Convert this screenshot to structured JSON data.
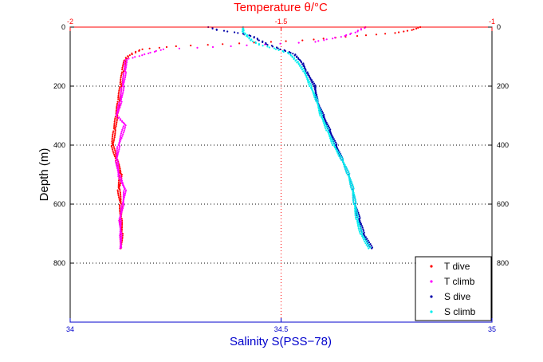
{
  "chart_data": {
    "type": "scatter",
    "top_axis": {
      "label": "Temperature θ/°C",
      "range": [
        -2,
        -1
      ],
      "ticks": [
        "-2",
        "-1.5",
        "-1"
      ],
      "tick_values": [
        -2,
        -1.5,
        -1
      ],
      "color": "#ff0000"
    },
    "bottom_axis": {
      "label": "Salinity S(PSS−78)",
      "range": [
        34,
        35
      ],
      "ticks": [
        "34",
        "34.5",
        "35"
      ],
      "tick_values": [
        34,
        34.5,
        35
      ],
      "color": "#0000cc"
    },
    "y_axis": {
      "label": "Depth (m)",
      "range": [
        0,
        1000
      ],
      "reversed": true,
      "ticks": [
        "0",
        "200",
        "400",
        "600",
        "800"
      ],
      "tick_values": [
        0,
        200,
        400,
        600,
        800
      ]
    },
    "grid": "dotted",
    "legend_position": "bottom-right",
    "series": [
      {
        "name": "T dive",
        "axis": "top",
        "color": "#ff0000",
        "points": [
          [
            -1.17,
            0
          ],
          [
            -1.19,
            10
          ],
          [
            -1.23,
            20
          ],
          [
            -1.32,
            30
          ],
          [
            -1.45,
            45
          ],
          [
            -1.6,
            55
          ],
          [
            -1.75,
            65
          ],
          [
            -1.83,
            75
          ],
          [
            -1.86,
            95
          ],
          [
            -1.87,
            110
          ],
          [
            -1.875,
            150
          ],
          [
            -1.88,
            200
          ],
          [
            -1.885,
            250
          ],
          [
            -1.89,
            300
          ],
          [
            -1.895,
            350
          ],
          [
            -1.9,
            400
          ],
          [
            -1.89,
            450
          ],
          [
            -1.88,
            500
          ],
          [
            -1.885,
            550
          ],
          [
            -1.88,
            600
          ],
          [
            -1.88,
            650
          ],
          [
            -1.878,
            700
          ],
          [
            -1.88,
            750
          ]
        ]
      },
      {
        "name": "T climb",
        "axis": "top",
        "color": "#ff00ff",
        "points": [
          [
            -1.88,
            750
          ],
          [
            -1.88,
            700
          ],
          [
            -1.882,
            650
          ],
          [
            -1.875,
            600
          ],
          [
            -1.87,
            550
          ],
          [
            -1.885,
            500
          ],
          [
            -1.89,
            450
          ],
          [
            -1.885,
            400
          ],
          [
            -1.87,
            330
          ],
          [
            -1.89,
            300
          ],
          [
            -1.88,
            250
          ],
          [
            -1.875,
            200
          ],
          [
            -1.87,
            150
          ],
          [
            -1.868,
            110
          ],
          [
            -1.83,
            95
          ],
          [
            -1.78,
            75
          ],
          [
            -1.62,
            65
          ],
          [
            -1.42,
            50
          ],
          [
            -1.35,
            30
          ],
          [
            -1.32,
            15
          ],
          [
            -1.3,
            0
          ]
        ]
      },
      {
        "name": "S dive",
        "axis": "bottom",
        "color": "#0000aa",
        "points": [
          [
            34.33,
            0
          ],
          [
            34.35,
            10
          ],
          [
            34.4,
            20
          ],
          [
            34.43,
            30
          ],
          [
            34.45,
            45
          ],
          [
            34.47,
            60
          ],
          [
            34.5,
            75
          ],
          [
            34.53,
            90
          ],
          [
            34.55,
            120
          ],
          [
            34.56,
            150
          ],
          [
            34.58,
            200
          ],
          [
            34.585,
            250
          ],
          [
            34.6,
            300
          ],
          [
            34.615,
            350
          ],
          [
            34.63,
            400
          ],
          [
            34.645,
            450
          ],
          [
            34.66,
            500
          ],
          [
            34.67,
            550
          ],
          [
            34.675,
            600
          ],
          [
            34.685,
            650
          ],
          [
            34.695,
            700
          ],
          [
            34.715,
            750
          ]
        ]
      },
      {
        "name": "S climb",
        "axis": "bottom",
        "color": "#00eeee",
        "points": [
          [
            34.71,
            750
          ],
          [
            34.69,
            700
          ],
          [
            34.68,
            650
          ],
          [
            34.675,
            600
          ],
          [
            34.67,
            550
          ],
          [
            34.66,
            500
          ],
          [
            34.645,
            450
          ],
          [
            34.625,
            400
          ],
          [
            34.61,
            350
          ],
          [
            34.595,
            300
          ],
          [
            34.585,
            250
          ],
          [
            34.57,
            200
          ],
          [
            34.555,
            150
          ],
          [
            34.54,
            120
          ],
          [
            34.52,
            90
          ],
          [
            34.49,
            75
          ],
          [
            34.45,
            60
          ],
          [
            34.43,
            45
          ],
          [
            34.42,
            30
          ],
          [
            34.41,
            15
          ],
          [
            34.41,
            0
          ]
        ]
      }
    ],
    "legend_entries": [
      "T dive",
      "T climb",
      "S dive",
      "S climb"
    ]
  }
}
